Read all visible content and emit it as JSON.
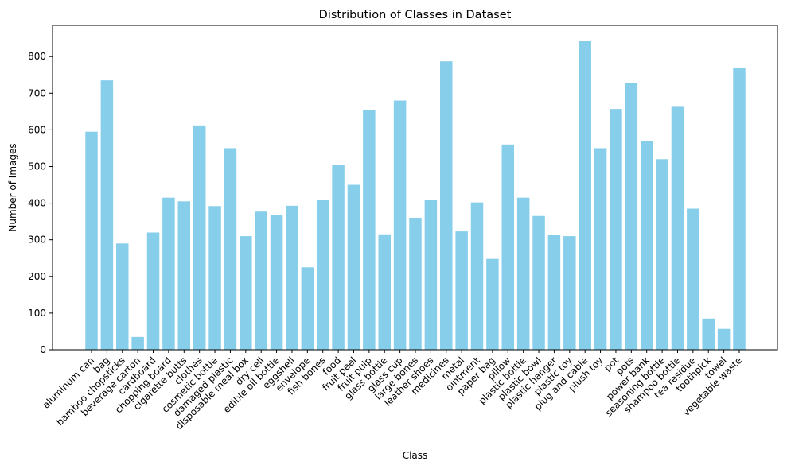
{
  "chart_data": {
    "type": "bar",
    "title": "Distribution of Classes in Dataset",
    "xlabel": "Class",
    "ylabel": "Number of Images",
    "ylim": [
      0,
      885
    ],
    "yticks": [
      0,
      100,
      200,
      300,
      400,
      500,
      600,
      700,
      800
    ],
    "bar_color": "#87CEEB",
    "grid": false,
    "categories": [
      "aluminum can",
      "bag",
      "bamboo chopsticks",
      "beverage carton",
      "cardboard",
      "chopping board",
      "cigarette butts",
      "clothes",
      "cosmetic bottle",
      "damaged plastic",
      "disposable meal box",
      "dry cell",
      "edible oil bottle",
      "eggshell",
      "envelope",
      "fish bones",
      "food",
      "fruit peel",
      "fruit pulp",
      "glass bottle",
      "glass cup",
      "large bones",
      "leather shoes",
      "medicines",
      "metal",
      "ointment",
      "paper bag",
      "pillow",
      "plastic bottle",
      "plastic bowl",
      "plastic hanger",
      "plastic toy",
      "plug and cable",
      "plush toy",
      "pot",
      "pots",
      "power bank",
      "seasoning bottle",
      "shampoo bottle",
      "tea residue",
      "toothpick",
      "towel",
      "vegetable waste"
    ],
    "values": [
      595,
      735,
      290,
      35,
      320,
      415,
      405,
      612,
      392,
      550,
      310,
      377,
      368,
      393,
      225,
      408,
      505,
      450,
      655,
      315,
      680,
      360,
      408,
      787,
      323,
      402,
      248,
      560,
      415,
      365,
      313,
      310,
      843,
      550,
      657,
      728,
      570,
      520,
      665,
      385,
      85,
      57,
      768
    ]
  }
}
